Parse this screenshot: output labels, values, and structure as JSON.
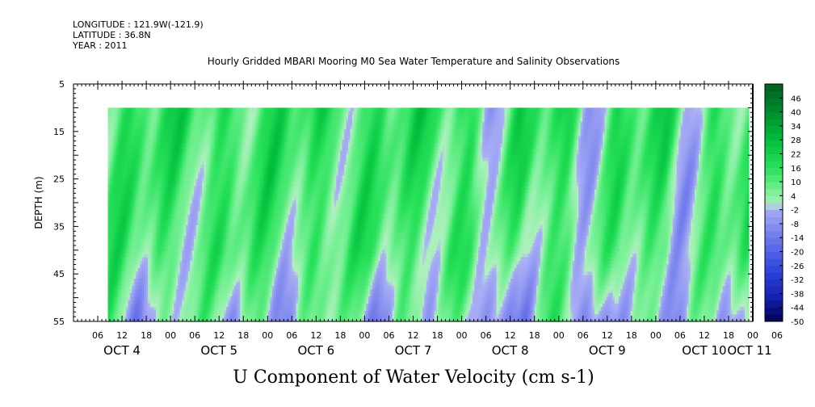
{
  "header": {
    "longitude": "LONGITUDE : 121.9W(-121.9)",
    "latitude": "LATITUDE : 36.8N",
    "year": "YEAR : 2011",
    "title": "Hourly Gridded MBARI Mooring M0 Sea Water Temperature and Salinity Observations"
  },
  "chart_data": {
    "type": "heatmap",
    "title": "Hourly Gridded MBARI Mooring M0 Sea Water Temperature and Salinity Observations",
    "variable_label": "U Component of Water Velocity (cm s-1)",
    "ylabel": "DEPTH (m)",
    "ylim": [
      5,
      55
    ],
    "y_inverted": true,
    "y_ticks": [
      5,
      15,
      25,
      35,
      45,
      55
    ],
    "data_depth_range": [
      10,
      55
    ],
    "x_range_hours": [
      0,
      168
    ],
    "x_hour_ticks": [
      "06",
      "12",
      "18",
      "00",
      "06",
      "12",
      "18",
      "00",
      "06",
      "12",
      "18",
      "00",
      "06",
      "12",
      "18",
      "00",
      "06",
      "12",
      "18",
      "00",
      "06",
      "12",
      "18",
      "00",
      "06",
      "12",
      "18",
      "00",
      "06"
    ],
    "x_day_labels": [
      "OCT  4",
      "OCT  5",
      "OCT  6",
      "OCT  7",
      "OCT  8",
      "OCT  9",
      "OCT 10",
      "OCT 11"
    ],
    "x_start": "OCT 4 00:00",
    "colorbar_ticks": [
      46,
      40,
      34,
      28,
      22,
      16,
      10,
      4,
      -2,
      -8,
      -14,
      -20,
      -26,
      -32,
      -38,
      -44,
      -50
    ],
    "colorbar_range": [
      -50,
      52
    ],
    "colors": {
      "strong_positive": "#006d2c",
      "positive": "#00e64d",
      "weak_positive": "#a1f2b3",
      "weak_negative": "#9fa6ee",
      "negative": "#2b3fcf",
      "strong_negative": "#000060"
    },
    "grid": false
  }
}
